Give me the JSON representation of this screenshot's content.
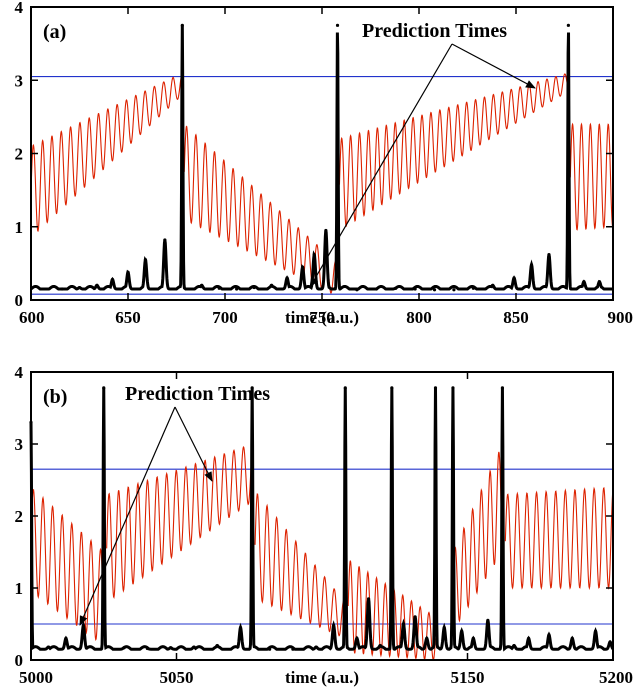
{
  "chart_data": [
    {
      "panel_label": "(a)",
      "type": "line",
      "xlabel": "time (a.u.)",
      "xlim": [
        600,
        900
      ],
      "ylim": [
        0,
        4
      ],
      "x_ticks": [
        "600",
        "650",
        "700",
        "750",
        "800",
        "850",
        "900"
      ],
      "y_ticks": [
        "0",
        "1",
        "2",
        "3",
        "4"
      ],
      "annotation": "Prediction Times",
      "hlines": [
        3.05,
        0.08
      ],
      "series": [
        {
          "color": "#000000",
          "style": "spiky",
          "baseline": 0.15,
          "x": [
            616,
            625,
            634,
            642,
            650,
            659,
            669,
            678,
            688,
            697,
            706,
            715,
            724,
            732,
            740,
            746,
            752,
            758,
            768,
            778,
            788,
            798,
            808,
            818,
            828,
            838,
            849,
            858,
            867,
            877,
            885,
            893
          ],
          "y": [
            0.15,
            0.17,
            0.2,
            0.28,
            0.38,
            0.55,
            0.82,
            3.75,
            0.2,
            0.16,
            0.15,
            0.17,
            0.2,
            0.3,
            0.45,
            0.62,
            0.95,
            3.75,
            0.14,
            0.15,
            0.16,
            0.15,
            0.14,
            0.14,
            0.16,
            0.2,
            0.3,
            0.48,
            0.62,
            3.75,
            0.25,
            0.25
          ]
        },
        {
          "color": "#dd2200",
          "style": "oscillation",
          "segments": [
            {
              "x0": 600,
              "x1": 678,
              "lo_start": 0.85,
              "hi_start": 2.1,
              "lo_end": 2.8,
              "hi_end": 3.1,
              "period": 4.8
            },
            {
              "x0": 679,
              "x1": 758,
              "lo_start": 1.1,
              "hi_start": 2.4,
              "lo_end": 0.05,
              "hi_end": 0.5,
              "period": 4.8
            },
            {
              "x0": 759,
              "x1": 877,
              "lo_start": 0.95,
              "hi_start": 2.2,
              "lo_end": 2.85,
              "hi_end": 3.1,
              "period": 4.6
            },
            {
              "x0": 878,
              "x1": 900,
              "lo_start": 0.95,
              "hi_start": 2.4,
              "lo_end": 1.0,
              "hi_end": 2.4,
              "period": 4.6
            }
          ]
        }
      ]
    },
    {
      "panel_label": "(b)",
      "type": "line",
      "xlabel": "time (a.u.)",
      "xlim": [
        5000,
        5200
      ],
      "ylim": [
        0,
        4
      ],
      "x_ticks": [
        "5000",
        "5050",
        "5150",
        "5200"
      ],
      "annotation": "Prediction Times",
      "y_ticks": [
        "0",
        "1",
        "2",
        "3",
        "4"
      ],
      "hlines": [
        2.65,
        0.5
      ],
      "series": [
        {
          "color": "#000000",
          "style": "spiky",
          "baseline": 0.15,
          "x": [
            5000,
            5006,
            5012,
            5018,
            5025,
            5032,
            5040,
            5048,
            5056,
            5064,
            5072,
            5076,
            5082,
            5090,
            5098,
            5104,
            5108,
            5112,
            5116,
            5120,
            5124,
            5128,
            5132,
            5136,
            5139,
            5142,
            5145,
            5148,
            5152,
            5157,
            5162,
            5166,
            5171,
            5178,
            5186,
            5194,
            5199
          ],
          "y": [
            3.3,
            0.18,
            0.3,
            0.48,
            3.78,
            0.17,
            0.16,
            0.17,
            0.18,
            0.2,
            0.45,
            3.78,
            0.15,
            0.15,
            0.18,
            0.48,
            3.78,
            0.3,
            0.85,
            0.2,
            3.78,
            0.5,
            0.6,
            0.3,
            3.78,
            0.45,
            3.78,
            0.4,
            0.3,
            0.55,
            3.78,
            0.2,
            0.3,
            0.35,
            0.3,
            0.4,
            0.25
          ]
        },
        {
          "color": "#dd2200",
          "style": "oscillation",
          "segments": [
            {
              "x0": 5000,
              "x1": 5025,
              "lo_start": 0.95,
              "hi_start": 2.4,
              "lo_end": 0.2,
              "hi_end": 1.5,
              "period": 3.3
            },
            {
              "x0": 5026,
              "x1": 5076,
              "lo_start": 0.8,
              "hi_start": 2.3,
              "lo_end": 2.2,
              "hi_end": 3.0,
              "period": 3.3
            },
            {
              "x0": 5077,
              "x1": 5108,
              "lo_start": 0.85,
              "hi_start": 2.35,
              "lo_end": 0.3,
              "hi_end": 0.8,
              "period": 3.3
            },
            {
              "x0": 5109,
              "x1": 5139,
              "lo_start": 0.1,
              "hi_start": 1.4,
              "lo_end": 0.0,
              "hi_end": 0.6,
              "period": 3.0
            },
            {
              "x0": 5145,
              "x1": 5162,
              "lo_start": 0.4,
              "hi_start": 1.5,
              "lo_end": 1.5,
              "hi_end": 3.0,
              "period": 3.0
            },
            {
              "x0": 5163,
              "x1": 5200,
              "lo_start": 1.0,
              "hi_start": 2.3,
              "lo_end": 1.0,
              "hi_end": 2.4,
              "period": 3.3
            }
          ]
        }
      ]
    }
  ]
}
